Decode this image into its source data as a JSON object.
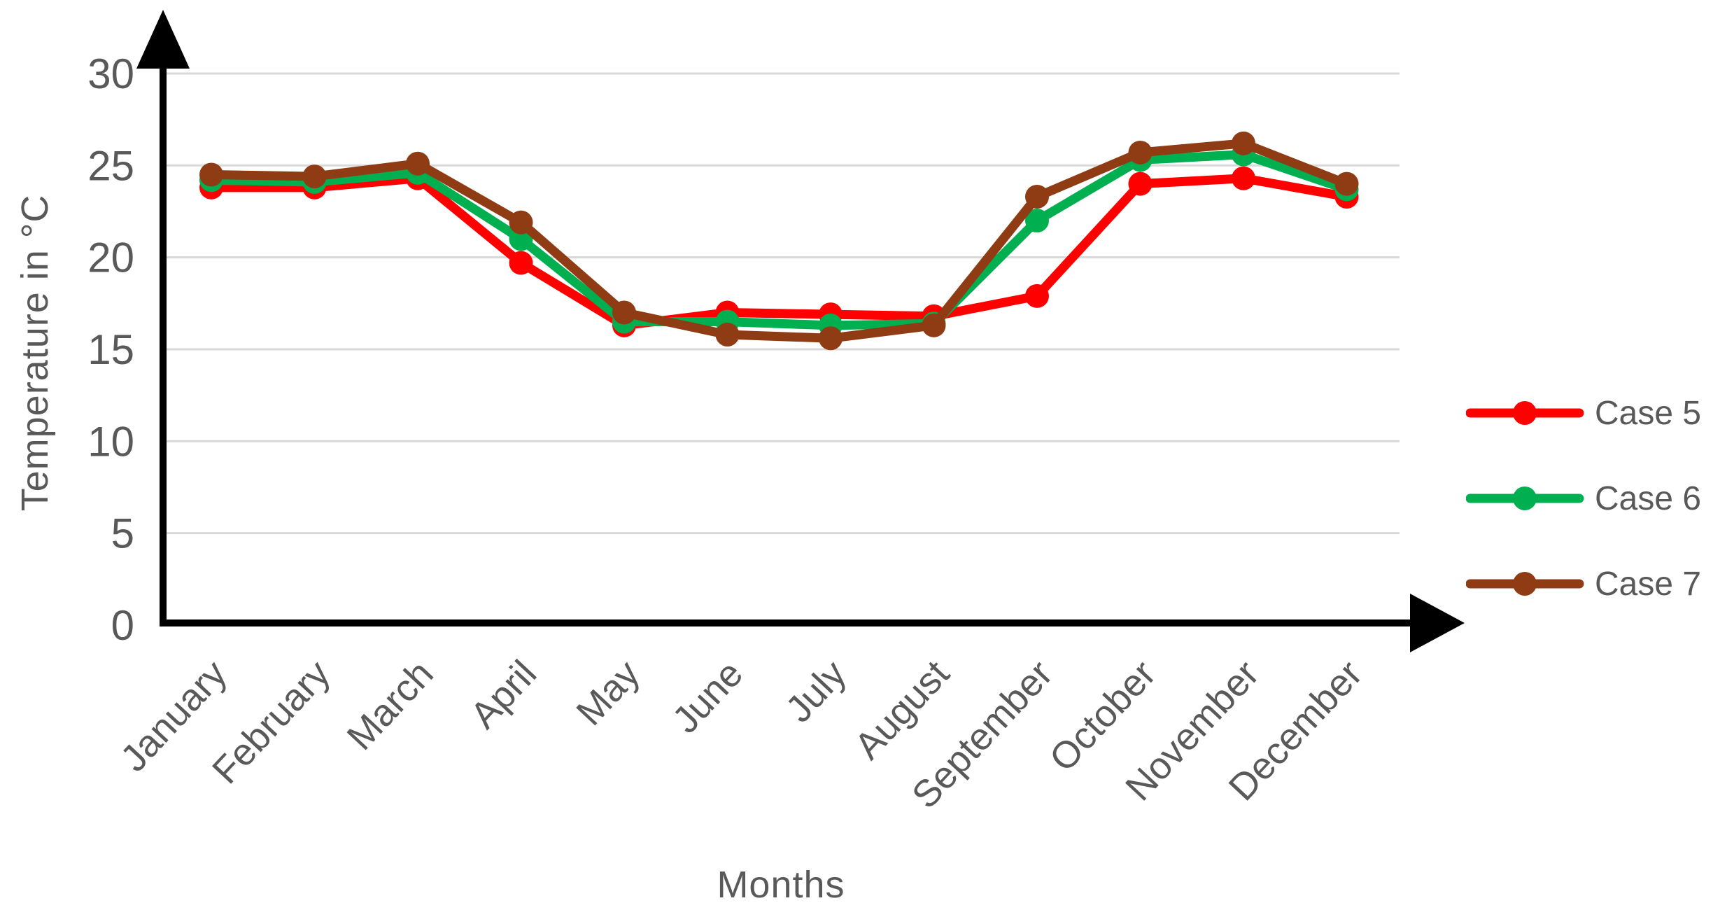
{
  "chart_data": {
    "type": "line",
    "title": "",
    "xlabel": "Months",
    "ylabel": "Temperature in °C",
    "categories": [
      "January",
      "February",
      "March",
      "April",
      "May",
      "June",
      "July",
      "August",
      "September",
      "October",
      "November",
      "December"
    ],
    "series": [
      {
        "name": "Case 5",
        "color": "#FF0000",
        "values": [
          23.8,
          23.8,
          24.3,
          19.7,
          16.3,
          17.0,
          16.9,
          16.8,
          17.9,
          24.0,
          24.3,
          23.3
        ]
      },
      {
        "name": "Case 6",
        "color": "#00B050",
        "values": [
          24.2,
          24.1,
          24.6,
          21.0,
          16.5,
          16.5,
          16.3,
          16.4,
          22.0,
          25.3,
          25.6,
          23.7
        ]
      },
      {
        "name": "Case 7",
        "color": "#8F3B13",
        "values": [
          24.5,
          24.4,
          25.1,
          21.9,
          17.0,
          15.8,
          15.6,
          16.3,
          23.3,
          25.7,
          26.2,
          24.0
        ]
      }
    ],
    "y_ticks": [
      0,
      5,
      10,
      15,
      20,
      25,
      30
    ],
    "ylim": [
      0,
      30
    ],
    "grid": true,
    "legend_position": "right",
    "legend_labels": [
      "Case 5",
      "Case 6",
      "Case 7"
    ]
  },
  "colors": {
    "text": "#595959",
    "grid": "#D9D9D9",
    "axis": "#000000",
    "background": "#FFFFFF"
  }
}
